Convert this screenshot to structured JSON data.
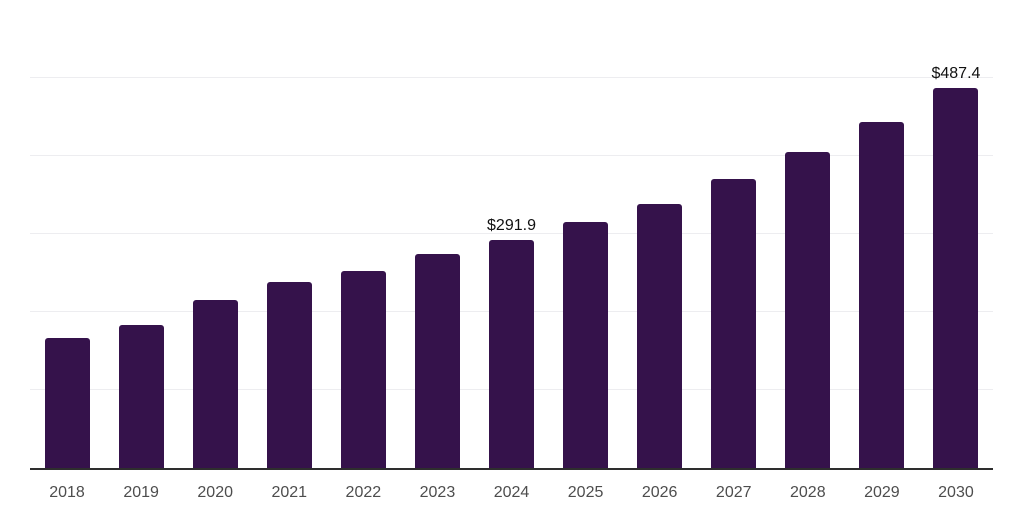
{
  "chart_data": {
    "type": "bar",
    "title": "",
    "xlabel": "",
    "ylabel": "",
    "categories": [
      "2018",
      "2019",
      "2020",
      "2021",
      "2022",
      "2023",
      "2024",
      "2025",
      "2026",
      "2027",
      "2028",
      "2029",
      "2030"
    ],
    "values": [
      167,
      183,
      216,
      239,
      253,
      274,
      291.9,
      316,
      339,
      370,
      405,
      444,
      487.4
    ],
    "bar_labels": [
      "",
      "",
      "",
      "",
      "",
      "",
      "$291.9",
      "",
      "",
      "",
      "",
      "",
      "$487.4"
    ],
    "ylim": [
      0,
      600
    ],
    "gridline_values": [
      100,
      200,
      300,
      400,
      500,
      600
    ],
    "grid": "horizontal",
    "legend_position": "none",
    "colors": {
      "bar_fill": "#35124b",
      "axis_line": "#2e2e2e",
      "gridline": "#ededf0",
      "tick_label": "#4d4d4d",
      "data_label": "#111111",
      "background": "#ffffff"
    }
  }
}
